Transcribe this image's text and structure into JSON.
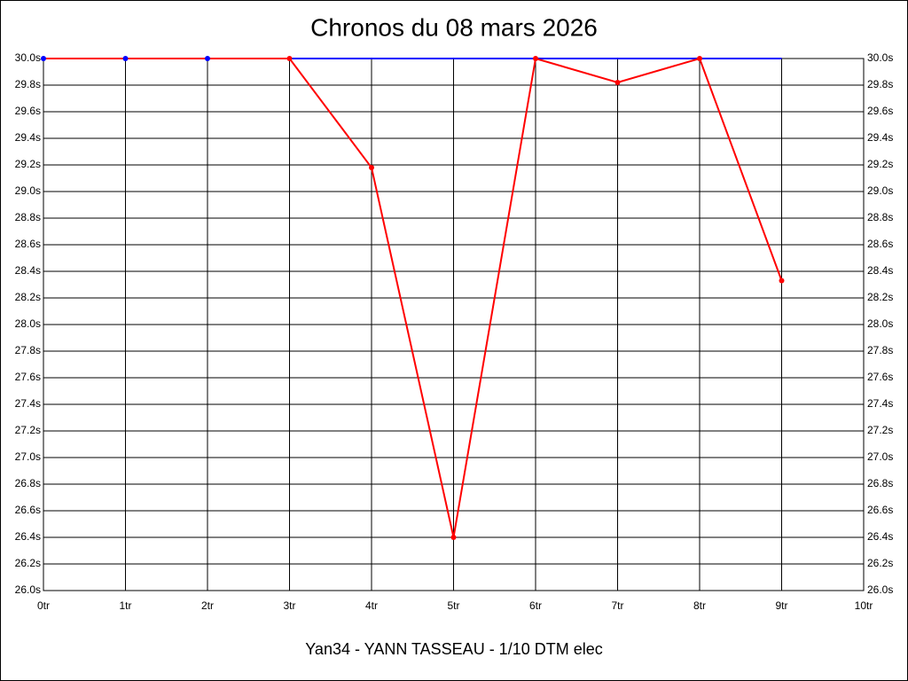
{
  "chart_data": {
    "type": "line",
    "title": "Chronos du 08 mars 2026",
    "subtitle": "Yan34 - YANN TASSEAU - 1/10 DTM elec",
    "x": [
      0,
      1,
      2,
      3,
      4,
      5,
      6,
      7,
      8,
      9
    ],
    "xlim": [
      0,
      10
    ],
    "xticks": [
      {
        "value": 0,
        "label": "0tr"
      },
      {
        "value": 1,
        "label": "1tr"
      },
      {
        "value": 2,
        "label": "2tr"
      },
      {
        "value": 3,
        "label": "3tr"
      },
      {
        "value": 4,
        "label": "4tr"
      },
      {
        "value": 5,
        "label": "5tr"
      },
      {
        "value": 6,
        "label": "6tr"
      },
      {
        "value": 7,
        "label": "7tr"
      },
      {
        "value": 8,
        "label": "8tr"
      },
      {
        "value": 9,
        "label": "9tr"
      },
      {
        "value": 10,
        "label": "10tr"
      }
    ],
    "ylim": [
      26,
      30
    ],
    "yticks": [
      {
        "value": 26,
        "label": "26.0s"
      },
      {
        "value": 26.2,
        "label": "26.2s"
      },
      {
        "value": 26.4,
        "label": "26.4s"
      },
      {
        "value": 26.6,
        "label": "26.6s"
      },
      {
        "value": 26.8,
        "label": "26.8s"
      },
      {
        "value": 27,
        "label": "27.0s"
      },
      {
        "value": 27.2,
        "label": "27.2s"
      },
      {
        "value": 27.4,
        "label": "27.4s"
      },
      {
        "value": 27.6,
        "label": "27.6s"
      },
      {
        "value": 27.8,
        "label": "27.8s"
      },
      {
        "value": 28,
        "label": "28.0s"
      },
      {
        "value": 28.2,
        "label": "28.2s"
      },
      {
        "value": 28.4,
        "label": "28.4s"
      },
      {
        "value": 28.6,
        "label": "28.6s"
      },
      {
        "value": 28.8,
        "label": "28.8s"
      },
      {
        "value": 29,
        "label": "29.0s"
      },
      {
        "value": 29.2,
        "label": "29.2s"
      },
      {
        "value": 29.4,
        "label": "29.4s"
      },
      {
        "value": 29.6,
        "label": "29.6s"
      },
      {
        "value": 29.8,
        "label": "29.8s"
      },
      {
        "value": 30,
        "label": "30.0s"
      }
    ],
    "grid": true,
    "series": [
      {
        "color": "#0000ff",
        "values": [
          null,
          null,
          null,
          30,
          30,
          30,
          30,
          30,
          30,
          30
        ],
        "markers": false
      },
      {
        "color": "#ff0000",
        "values": [
          30,
          30,
          30,
          30,
          29.18,
          26.4,
          30,
          29.82,
          30,
          28.33
        ],
        "markers": true,
        "marker_colors": [
          "#0000ff",
          "#0000ff",
          "#0000ff",
          "#ff0000",
          "#ff0000",
          "#ff0000",
          "#ff0000",
          "#ff0000",
          "#ff0000",
          "#ff0000"
        ]
      }
    ]
  }
}
